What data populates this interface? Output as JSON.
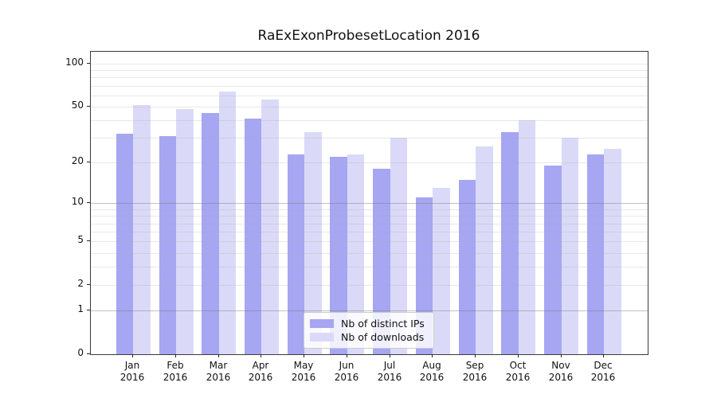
{
  "figure": {
    "background": "#ffffff"
  },
  "chart_data": {
    "type": "bar",
    "title": "RaExExonProbesetLocation 2016",
    "categories": [
      "Jan",
      "Feb",
      "Mar",
      "Apr",
      "May",
      "Jun",
      "Jul",
      "Aug",
      "Sep",
      "Oct",
      "Nov",
      "Dec"
    ],
    "x_sublabel": "2016",
    "series": [
      {
        "name": "Nb of distinct IPs",
        "color": "#a6a6f2",
        "values": [
          32,
          31,
          45,
          41,
          23,
          22,
          18,
          11,
          15,
          33,
          19,
          23
        ]
      },
      {
        "name": "Nb of downloads",
        "color": "#dadaf8",
        "values": [
          51,
          48,
          64,
          56,
          33,
          23,
          30,
          13,
          26,
          40,
          30,
          25
        ]
      }
    ],
    "yscale": "log1p",
    "ylim": [
      0,
      121
    ],
    "y_ticks_labeled": [
      0,
      1,
      2,
      5,
      10,
      20,
      50,
      100
    ],
    "y_grid_major": [
      1,
      10
    ],
    "y_grid_minor": [
      2,
      3,
      4,
      5,
      6,
      7,
      8,
      9,
      20,
      30,
      40,
      50,
      60,
      70,
      80,
      90,
      100
    ],
    "grid": true,
    "legend_position": "lower-center",
    "colors": {
      "spine": "#3a3a3a",
      "text": "#111111"
    }
  }
}
